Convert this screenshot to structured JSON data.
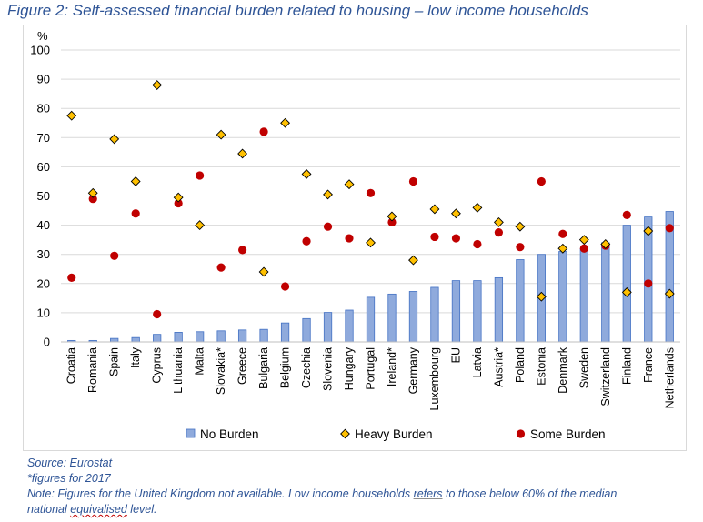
{
  "title": "Figure 2: Self-assessed financial burden related to housing – low income households",
  "notes": {
    "source": "Source: Eurostat",
    "footnote": "*figures for 2017",
    "note_part1": "Note: Figures for the United Kingdom not available. Low income households ",
    "note_refers": "refers",
    "note_part2": " to those below 60% of the median",
    "note_line2_part1": "national ",
    "note_line2_word": "equivalised",
    "note_line2_part2": " level."
  },
  "colors": {
    "bar_fill": "#8faadc",
    "bar_stroke": "#4472c4",
    "heavy_fill": "#ffc000",
    "heavy_stroke": "#000000",
    "some_fill": "#c00000",
    "title": "#2e5496"
  },
  "chart_data": {
    "type": "bar",
    "ylabel": "%",
    "ylim": [
      0,
      100
    ],
    "yticks": [
      0,
      10,
      20,
      30,
      40,
      50,
      60,
      70,
      80,
      90,
      100
    ],
    "grid": true,
    "legend_position": "bottom",
    "categories": [
      "Croatia",
      "Romania",
      "Spain",
      "Italy",
      "Cyprus",
      "Lithuania",
      "Malta",
      "Slovakia*",
      "Greece",
      "Bulgaria",
      "Belgium",
      "Czechia",
      "Slovenia",
      "Hungary",
      "Portugal",
      "Ireland*",
      "Germany",
      "Luxembourg",
      "EU",
      "Latvia",
      "Austria*",
      "Poland",
      "Estonia",
      "Denmark",
      "Sweden",
      "Switzerland",
      "Finland",
      "France",
      "Netherlands"
    ],
    "series": [
      {
        "name": "No Burden",
        "kind": "bar",
        "values": [
          0.5,
          0.5,
          1.2,
          1.5,
          2.6,
          3.3,
          3.5,
          3.8,
          4.1,
          4.3,
          6.5,
          8.0,
          10.1,
          10.9,
          15.3,
          16.4,
          17.3,
          18.7,
          21.0,
          21.0,
          22.0,
          28.2,
          30.0,
          31.0,
          32.0,
          34.0,
          40.0,
          42.8,
          44.7
        ]
      },
      {
        "name": "Heavy Burden",
        "kind": "diamond",
        "values": [
          77.5,
          51.0,
          69.5,
          55.0,
          88.0,
          49.5,
          40.0,
          71.0,
          64.5,
          24.0,
          75.0,
          57.5,
          50.5,
          54.0,
          34.0,
          43.0,
          28.0,
          45.5,
          44.0,
          46.0,
          41.0,
          39.5,
          15.5,
          32.0,
          35.0,
          33.5,
          17.0,
          38.0,
          16.5
        ]
      },
      {
        "name": "Some Burden",
        "kind": "circle",
        "values": [
          22.0,
          49.0,
          29.5,
          44.0,
          9.5,
          47.5,
          57.0,
          25.5,
          31.5,
          72.0,
          19.0,
          34.5,
          39.5,
          35.5,
          51.0,
          41.0,
          55.0,
          36.0,
          35.5,
          33.5,
          37.5,
          32.5,
          55.0,
          37.0,
          32.0,
          33.0,
          43.5,
          20.0,
          39.0
        ]
      }
    ]
  }
}
